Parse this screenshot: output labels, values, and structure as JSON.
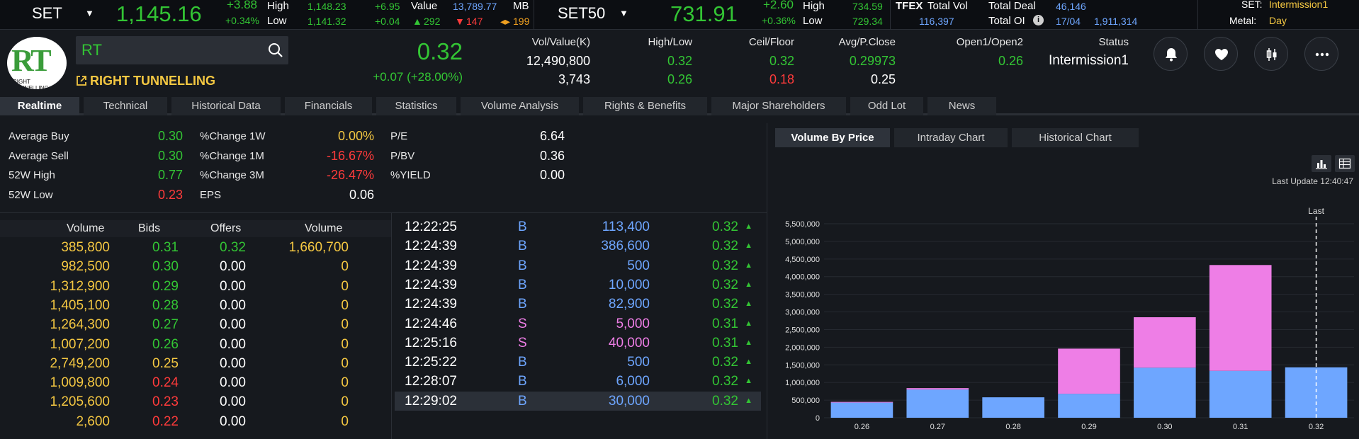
{
  "set": {
    "name": "SET",
    "value": "1,145.16",
    "change": "+3.88",
    "pct": "+0.34%",
    "high_label": "High",
    "low_label": "Low",
    "high": "1,148.23",
    "low": "1,141.32",
    "high_chg": "+6.95",
    "low_chg": "+0.04",
    "value_label": "Value",
    "value_amt": "13,789.77",
    "value_unit": "MB",
    "up": "292",
    "down": "147",
    "unchanged": "199"
  },
  "set50": {
    "name": "SET50",
    "value": "731.91",
    "change": "+2.60",
    "pct": "+0.36%",
    "high_label": "High",
    "low_label": "Low",
    "high": "734.59",
    "low": "729.34"
  },
  "tfex": {
    "label": "TFEX",
    "total_vol_label": "Total Vol",
    "total_vol": "116,397",
    "total_deal_label": "Total Deal",
    "total_deal": "46,146",
    "total_oi_label": "Total OI",
    "oi_date": "17/04",
    "total_oi": "1,911,314"
  },
  "session": {
    "set_label": "SET:",
    "set_value": "Intermission1",
    "metal_label": "Metal:",
    "metal_value": "Day"
  },
  "stock": {
    "symbol": "RT",
    "logo_text": "RT",
    "logo_sub": "RIGHT TUNNELLING",
    "company": "RIGHT TUNNELLING",
    "last": "0.32",
    "change": "+0.07 (+28.00%)",
    "vol_label": "Vol/Value(K)",
    "vol": "12,490,800",
    "value": "3,743",
    "hl_label": "High/Low",
    "high": "0.32",
    "low": "0.26",
    "cf_label": "Ceil/Floor",
    "ceil": "0.32",
    "floor": "0.18",
    "avg_label": "Avg/P.Close",
    "avg": "0.29973",
    "pclose": "0.25",
    "open_label": "Open1/Open2",
    "open1": "0.26",
    "status_label": "Status",
    "status": "Intermission1"
  },
  "tabs": [
    "Realtime",
    "Technical",
    "Historical Data",
    "Financials",
    "Statistics",
    "Volume Analysis",
    "Rights & Benefits",
    "Major Shareholders",
    "Odd Lot",
    "News"
  ],
  "stats": {
    "avg_buy_label": "Average Buy",
    "avg_buy": "0.30",
    "avg_sell_label": "Average Sell",
    "avg_sell": "0.30",
    "w52h_label": "52W High",
    "w52h": "0.77",
    "w52l_label": "52W Low",
    "w52l": "0.23",
    "c1w_label": "%Change 1W",
    "c1w": "0.00%",
    "c1m_label": "%Change 1M",
    "c1m": "-16.67%",
    "c3m_label": "%Change 3M",
    "c3m": "-26.47%",
    "eps_label": "EPS",
    "eps": "0.06",
    "pe_label": "P/E",
    "pe": "6.64",
    "pbv_label": "P/BV",
    "pbv": "0.36",
    "yield_label": "%YIELD",
    "yield": "0.00"
  },
  "orderbook": {
    "headers": [
      "Volume",
      "Bids",
      "Offers",
      "Volume"
    ],
    "rows": [
      [
        "385,800",
        "0.31",
        "0.32",
        "1,660,700"
      ],
      [
        "982,500",
        "0.30",
        "0.00",
        "0"
      ],
      [
        "1,312,900",
        "0.29",
        "0.00",
        "0"
      ],
      [
        "1,405,100",
        "0.28",
        "0.00",
        "0"
      ],
      [
        "1,264,300",
        "0.27",
        "0.00",
        "0"
      ],
      [
        "1,007,200",
        "0.26",
        "0.00",
        "0"
      ],
      [
        "2,749,200",
        "0.25",
        "0.00",
        "0"
      ],
      [
        "1,009,800",
        "0.24",
        "0.00",
        "0"
      ],
      [
        "1,205,600",
        "0.23",
        "0.00",
        "0"
      ],
      [
        "2,600",
        "0.22",
        "0.00",
        "0"
      ]
    ]
  },
  "ticks": [
    [
      "12:22:25",
      "B",
      "113,400",
      "0.32"
    ],
    [
      "12:24:39",
      "B",
      "386,600",
      "0.32"
    ],
    [
      "12:24:39",
      "B",
      "500",
      "0.32"
    ],
    [
      "12:24:39",
      "B",
      "10,000",
      "0.32"
    ],
    [
      "12:24:39",
      "B",
      "82,900",
      "0.32"
    ],
    [
      "12:24:46",
      "S",
      "5,000",
      "0.31"
    ],
    [
      "12:25:16",
      "S",
      "40,000",
      "0.31"
    ],
    [
      "12:25:22",
      "B",
      "500",
      "0.32"
    ],
    [
      "12:28:07",
      "B",
      "6,000",
      "0.32"
    ],
    [
      "12:29:02",
      "B",
      "30,000",
      "0.32"
    ]
  ],
  "right_tabs": [
    "Volume By Price",
    "Intraday Chart",
    "Historical Chart"
  ],
  "last_update": "Last Update 12:40:47",
  "chart_data": {
    "type": "bar",
    "stacked": true,
    "categories": [
      "0.26",
      "0.27",
      "0.28",
      "0.29",
      "0.30",
      "0.31",
      "0.32"
    ],
    "series": [
      {
        "color": "#6ea6ff",
        "values": [
          430000,
          800000,
          580000,
          680000,
          1420000,
          1330000,
          1430000
        ]
      },
      {
        "color": "#ee7ee6",
        "values": [
          20000,
          40000,
          0,
          1280000,
          1430000,
          3000000,
          0
        ]
      }
    ],
    "yticks": [
      "0",
      "500,000",
      "1,000,000",
      "1,500,000",
      "2,000,000",
      "2,500,000",
      "3,000,000",
      "3,500,000",
      "4,000,000",
      "4,500,000",
      "5,000,000",
      "5,500,000"
    ],
    "ylim": [
      0,
      5500000
    ],
    "marker_label": "Last",
    "marker_category": "0.32",
    "grid": true
  }
}
